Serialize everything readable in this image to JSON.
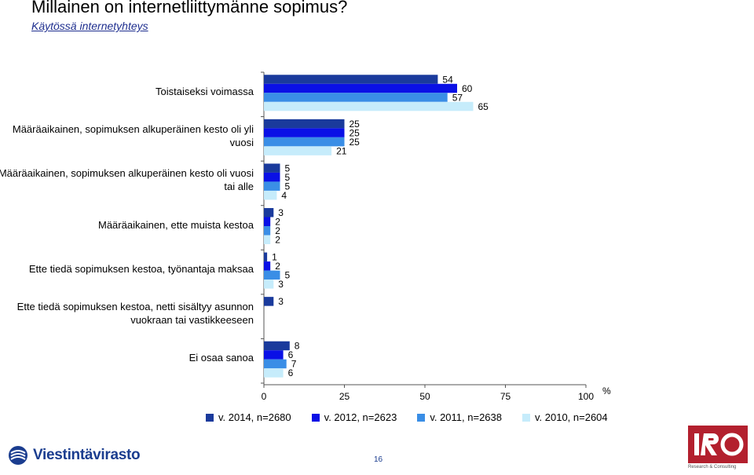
{
  "title": "Millainen on internetliittymänne sopimus?",
  "subtitle": "Käytössä internetyhteys",
  "axis_unit": "%",
  "page_number": "16",
  "logo_left_text": "Viestintävirasto",
  "logo_right_text": "IRO",
  "logo_right_caption": "Research & Consulting",
  "colors": {
    "series": [
      "#1a3a9c",
      "#0a10e6",
      "#3a8ee6",
      "#c6ecfb"
    ],
    "axis": "#555555",
    "iro_red": "#b3202e",
    "brand_blue": "#1b3d8f"
  },
  "chart_data": {
    "type": "bar",
    "orientation": "horizontal",
    "title": "Millainen on internetliittymänne sopimus?",
    "subtitle": "Käytössä internetyhteys",
    "xlabel": "%",
    "ylabel": "",
    "xlim": [
      0,
      100
    ],
    "xticks": [
      0,
      25,
      50,
      75,
      100
    ],
    "grid": false,
    "legend_position": "bottom",
    "categories": [
      "Toistaiseksi voimassa",
      "Määräaikainen, sopimuksen alkuperäinen kesto oli yli vuosi",
      "Määräaikainen, sopimuksen alkuperäinen kesto oli vuosi tai alle",
      "Määräaikainen, ette muista kestoa",
      "Ette tiedä sopimuksen kestoa, työnantaja maksaa",
      "Ette tiedä sopimuksen kestoa, netti sisältyy asunnon vuokraan tai vastikkeeseen",
      "Ei osaa sanoa"
    ],
    "series": [
      {
        "name": "v. 2014, n=2680",
        "values": [
          54,
          25,
          5,
          3,
          1,
          3,
          8
        ]
      },
      {
        "name": "v. 2012, n=2623",
        "values": [
          60,
          25,
          5,
          2,
          2,
          null,
          6
        ]
      },
      {
        "name": "v. 2011, n=2638",
        "values": [
          57,
          25,
          5,
          2,
          5,
          null,
          7
        ]
      },
      {
        "name": "v. 2010, n=2604",
        "values": [
          65,
          21,
          4,
          2,
          3,
          null,
          6
        ]
      }
    ]
  }
}
